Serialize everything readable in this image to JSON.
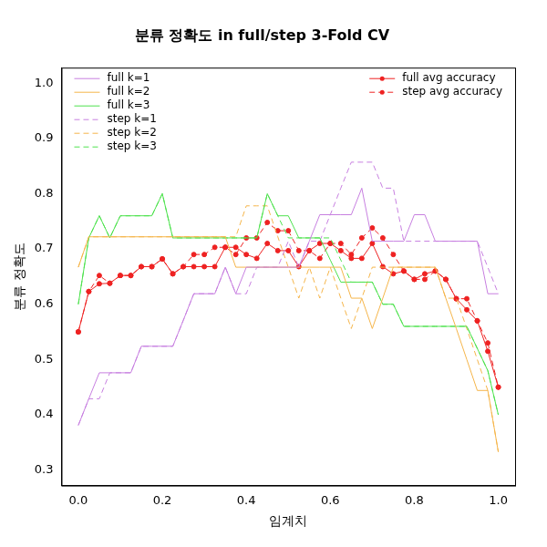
{
  "chart_data": {
    "type": "line",
    "title": "분류 정확도 in full/step 3-Fold CV",
    "x_label": "임계치",
    "y_label": "분류 정확도",
    "x": [
      0,
      0.025,
      0.05,
      0.075,
      0.1,
      0.125,
      0.15,
      0.175,
      0.2,
      0.225,
      0.25,
      0.275,
      0.3,
      0.325,
      0.35,
      0.375,
      0.4,
      0.425,
      0.45,
      0.475,
      0.5,
      0.525,
      0.55,
      0.575,
      0.6,
      0.625,
      0.65,
      0.675,
      0.7,
      0.725,
      0.75,
      0.775,
      0.8,
      0.825,
      0.85,
      0.875,
      0.9,
      0.925,
      0.95,
      0.975,
      1
    ],
    "xlim": [
      -0.04,
      1.04
    ],
    "xticks": [
      {
        "value": 0,
        "label": "0.0"
      },
      0.2,
      0.4,
      0.6,
      0.8,
      {
        "value": 1,
        "label": "1.0"
      }
    ],
    "ylim": [
      0.272,
      1.028
    ],
    "yticks": [
      0.3,
      0.4,
      0.5,
      0.6,
      0.7,
      0.8,
      0.9,
      {
        "value": 1,
        "label": "1.0"
      }
    ],
    "grid": false,
    "legend": "top",
    "series": [
      {
        "name": "full k=1",
        "color": "#c77fe0",
        "line_style": "solid",
        "marker": "none",
        "values": [
          0.381,
          0.429,
          0.476,
          0.476,
          0.476,
          0.476,
          0.524,
          0.524,
          0.524,
          0.524,
          0.571,
          0.619,
          0.619,
          0.619,
          0.667,
          0.619,
          0.667,
          0.667,
          0.667,
          0.667,
          0.667,
          0.667,
          0.714,
          0.762,
          0.762,
          0.762,
          0.762,
          0.81,
          0.714,
          0.714,
          0.714,
          0.714,
          0.762,
          0.762,
          0.714,
          0.714,
          0.714,
          0.714,
          0.714,
          0.619,
          0.619
        ]
      },
      {
        "name": "full k=2",
        "color": "#f5b54a",
        "line_style": "solid",
        "marker": "none",
        "values": [
          0.667,
          0.722,
          0.722,
          0.722,
          0.722,
          0.722,
          0.722,
          0.722,
          0.722,
          0.722,
          0.722,
          0.722,
          0.722,
          0.722,
          0.722,
          0.667,
          0.667,
          0.667,
          0.667,
          0.667,
          0.667,
          0.667,
          0.667,
          0.667,
          0.667,
          0.667,
          0.611,
          0.611,
          0.556,
          0.611,
          0.667,
          0.667,
          0.667,
          0.667,
          0.667,
          0.611,
          0.556,
          0.5,
          0.444,
          0.444,
          0.333
        ]
      },
      {
        "name": "full k=3",
        "color": "#4ee24e",
        "line_style": "solid",
        "marker": "none",
        "values": [
          0.6,
          0.72,
          0.76,
          0.72,
          0.76,
          0.76,
          0.76,
          0.76,
          0.8,
          0.72,
          0.72,
          0.72,
          0.72,
          0.72,
          0.72,
          0.72,
          0.72,
          0.72,
          0.8,
          0.76,
          0.76,
          0.72,
          0.72,
          0.72,
          0.68,
          0.64,
          0.64,
          0.64,
          0.64,
          0.6,
          0.6,
          0.56,
          0.56,
          0.56,
          0.56,
          0.56,
          0.56,
          0.56,
          0.52,
          0.48,
          0.4
        ]
      },
      {
        "name": "step k=1",
        "color": "#c77fe0",
        "line_style": "dashed",
        "marker": "none",
        "values": [
          0.381,
          0.429,
          0.429,
          0.476,
          0.476,
          0.476,
          0.524,
          0.524,
          0.524,
          0.524,
          0.571,
          0.619,
          0.619,
          0.619,
          0.667,
          0.619,
          0.619,
          0.667,
          0.667,
          0.667,
          0.714,
          0.667,
          0.714,
          0.714,
          0.762,
          0.81,
          0.857,
          0.857,
          0.857,
          0.81,
          0.81,
          0.714,
          0.714,
          0.714,
          0.714,
          0.714,
          0.714,
          0.714,
          0.714,
          0.667,
          0.619
        ]
      },
      {
        "name": "step k=2",
        "color": "#f5b54a",
        "line_style": "dashed",
        "marker": "none",
        "values": [
          0.667,
          0.722,
          0.722,
          0.722,
          0.722,
          0.722,
          0.722,
          0.722,
          0.722,
          0.722,
          0.722,
          0.722,
          0.722,
          0.722,
          0.722,
          0.722,
          0.778,
          0.778,
          0.778,
          0.722,
          0.667,
          0.611,
          0.667,
          0.611,
          0.667,
          0.611,
          0.556,
          0.611,
          0.667,
          0.667,
          0.667,
          0.667,
          0.667,
          0.667,
          0.667,
          0.611,
          0.611,
          0.556,
          0.5,
          0.444,
          0.333
        ]
      },
      {
        "name": "step k=3",
        "color": "#4ee24e",
        "line_style": "dashed",
        "marker": "none",
        "values": [
          0.6,
          0.72,
          0.76,
          0.72,
          0.76,
          0.76,
          0.76,
          0.76,
          0.8,
          0.72,
          0.72,
          0.72,
          0.72,
          0.72,
          0.72,
          0.72,
          0.72,
          0.72,
          0.8,
          0.76,
          0.72,
          0.72,
          0.72,
          0.72,
          0.72,
          0.68,
          0.64,
          0.64,
          0.64,
          0.6,
          0.6,
          0.56,
          0.56,
          0.56,
          0.56,
          0.56,
          0.56,
          0.56,
          0.52,
          0.48,
          0.4
        ]
      },
      {
        "name": "full avg accuracy",
        "color": "#ee2222",
        "line_style": "solid",
        "marker": "circle",
        "values": [
          0.55,
          0.623,
          0.637,
          0.638,
          0.652,
          0.652,
          0.668,
          0.668,
          0.682,
          0.655,
          0.668,
          0.668,
          0.668,
          0.668,
          0.703,
          0.703,
          0.69,
          0.683,
          0.71,
          0.697,
          0.697,
          0.668,
          0.697,
          0.71,
          0.71,
          0.697,
          0.683,
          0.683,
          0.71,
          0.668,
          0.655,
          0.66,
          0.645,
          0.655,
          0.66,
          0.645,
          0.61,
          0.59,
          0.57,
          0.515,
          0.45
        ]
      },
      {
        "name": "step avg accuracy",
        "color": "#ee2222",
        "line_style": "dashed",
        "marker": "circle",
        "values": [
          0.55,
          0.623,
          0.652,
          0.638,
          0.652,
          0.652,
          0.668,
          0.668,
          0.682,
          0.655,
          0.668,
          0.69,
          0.69,
          0.703,
          0.703,
          0.69,
          0.72,
          0.72,
          0.748,
          0.733,
          0.733,
          0.697,
          0.697,
          0.683,
          0.71,
          0.71,
          0.69,
          0.72,
          0.738,
          0.72,
          0.69,
          0.66,
          0.645,
          0.645,
          0.66,
          0.645,
          0.61,
          0.61,
          0.57,
          0.53,
          0.45
        ]
      }
    ]
  }
}
